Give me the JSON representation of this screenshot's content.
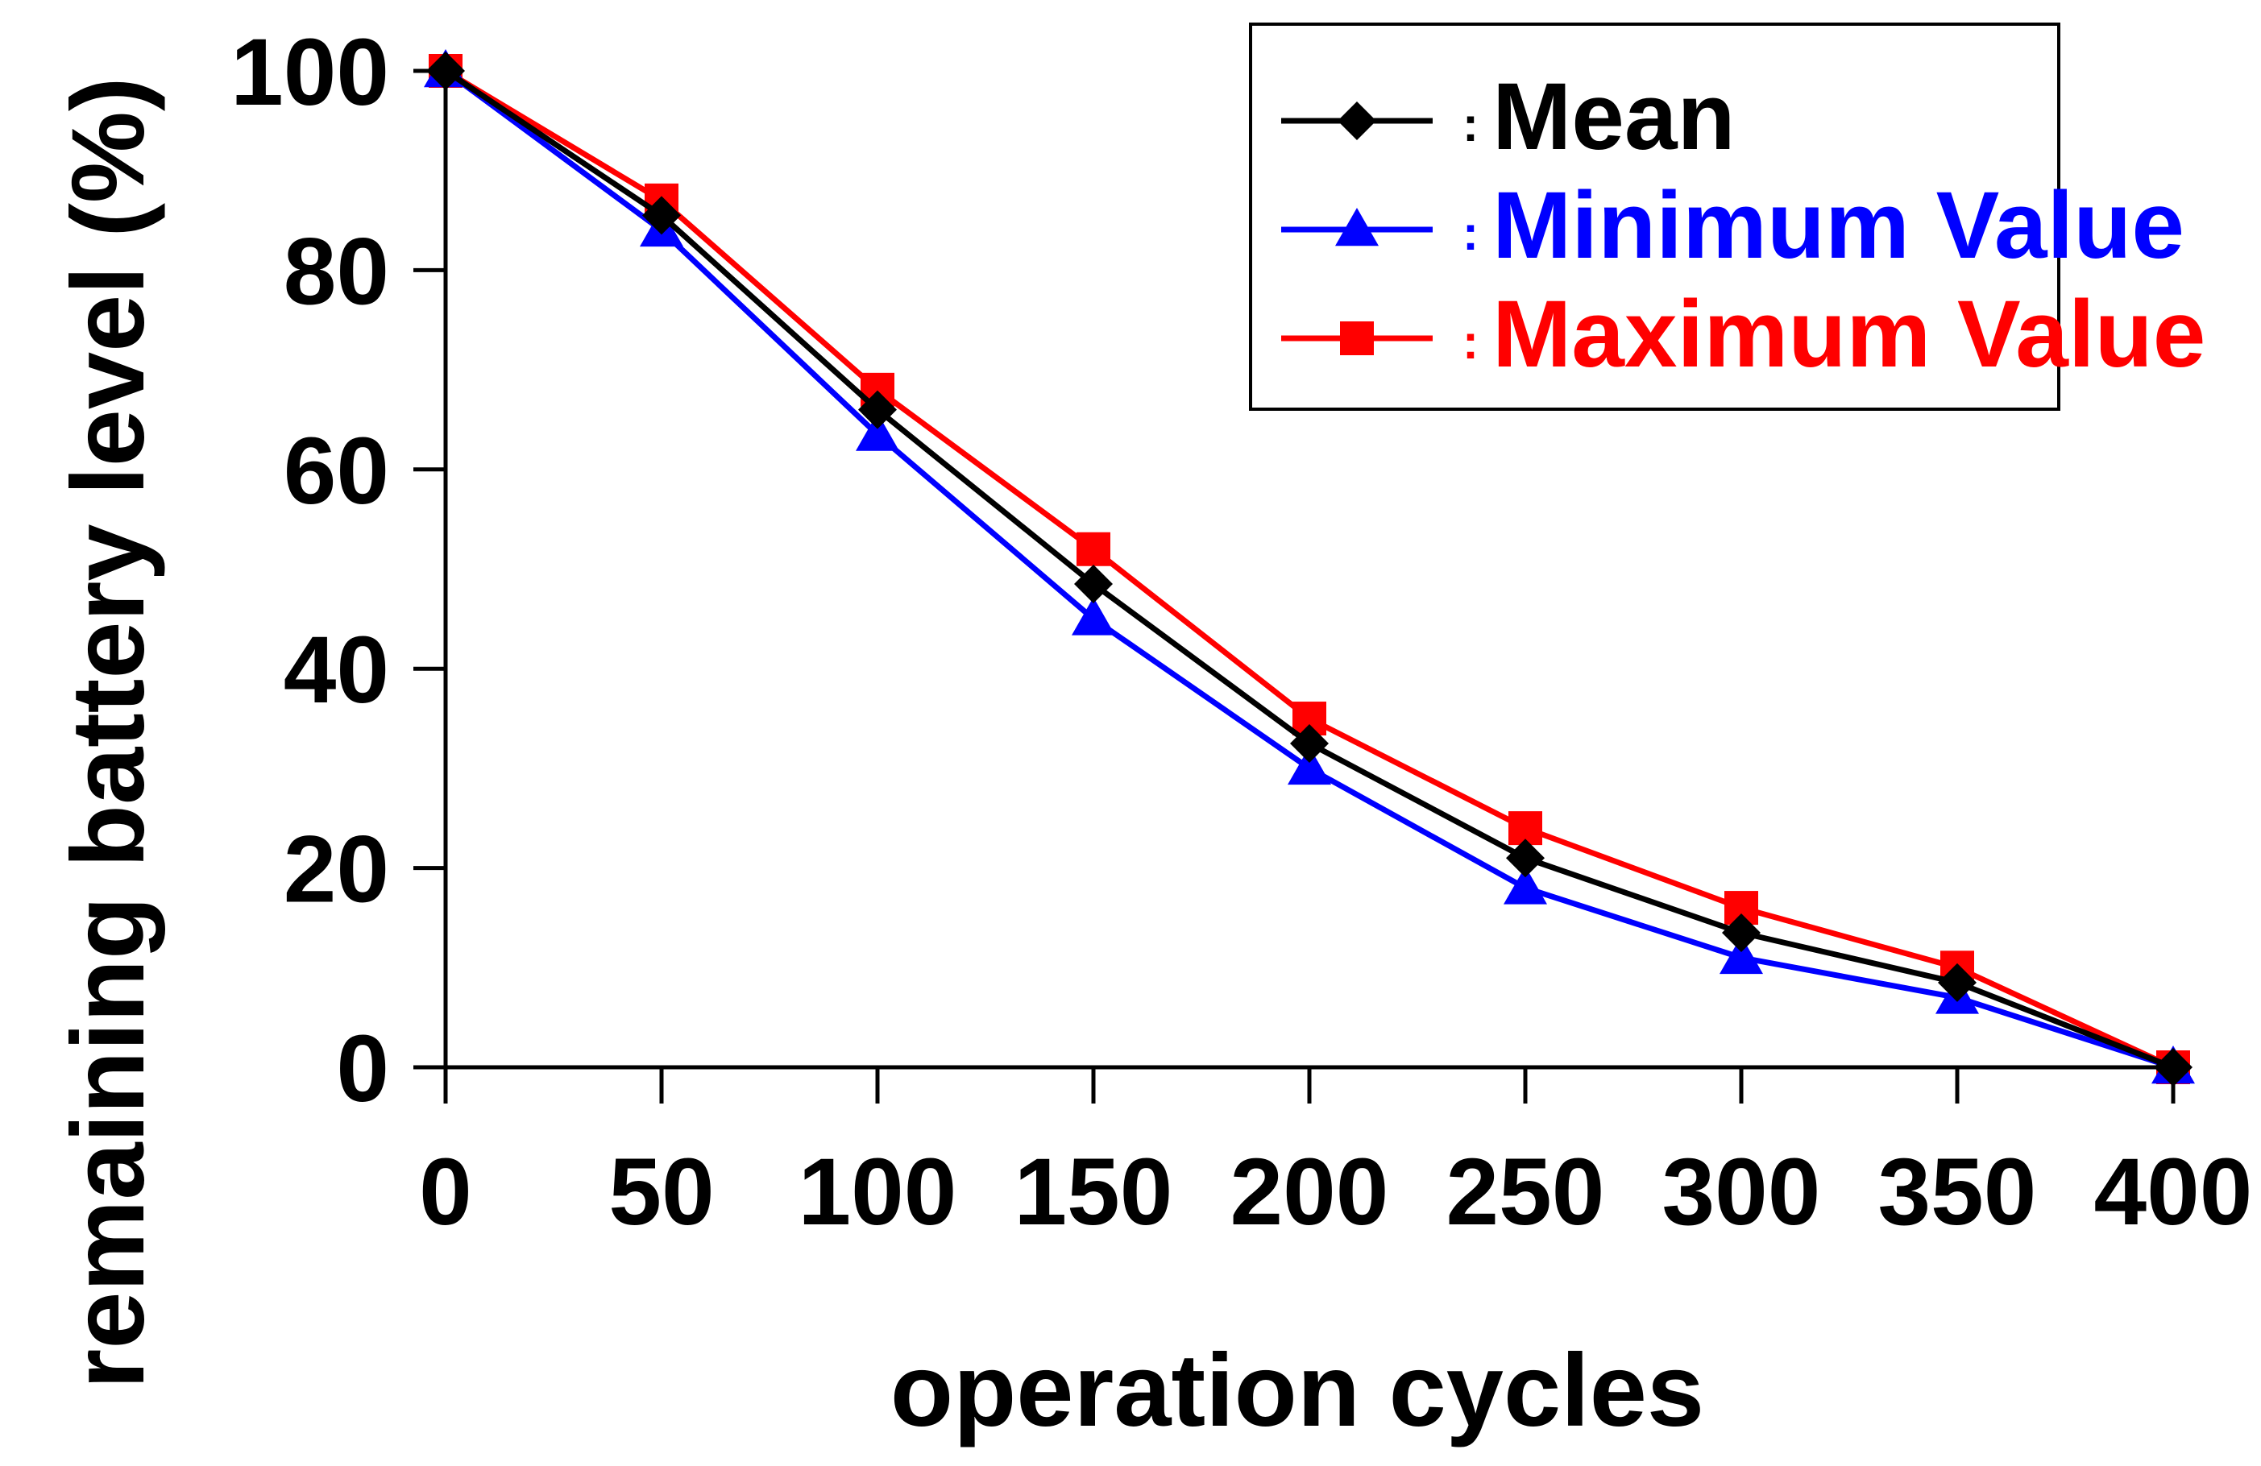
{
  "chart_data": {
    "type": "line",
    "xlabel": "operation cycles",
    "ylabel": "remaining battery level (%)",
    "x": [
      0,
      50,
      100,
      150,
      200,
      250,
      300,
      350,
      400
    ],
    "xlim": [
      0,
      400
    ],
    "ylim": [
      0,
      100
    ],
    "xticks": [
      0,
      50,
      100,
      150,
      200,
      250,
      300,
      350,
      400
    ],
    "yticks": [
      0,
      20,
      40,
      60,
      80,
      100
    ],
    "grid": false,
    "legend_position": "top-right",
    "series": [
      {
        "name": "Mean",
        "color": "#000000",
        "marker": "diamond",
        "values": [
          100,
          85.5,
          66,
          48.5,
          32.5,
          21,
          13.5,
          8.5,
          0
        ]
      },
      {
        "name": "Minimum Value",
        "color": "#0000ff",
        "marker": "triangle",
        "values": [
          100,
          84,
          63.5,
          45,
          30,
          18,
          11,
          7,
          0
        ]
      },
      {
        "name": "Maximum Value",
        "color": "#ff0000",
        "marker": "square",
        "values": [
          100,
          87,
          68,
          52,
          35,
          24,
          16,
          10,
          0
        ]
      }
    ],
    "legend_separator": ":"
  }
}
